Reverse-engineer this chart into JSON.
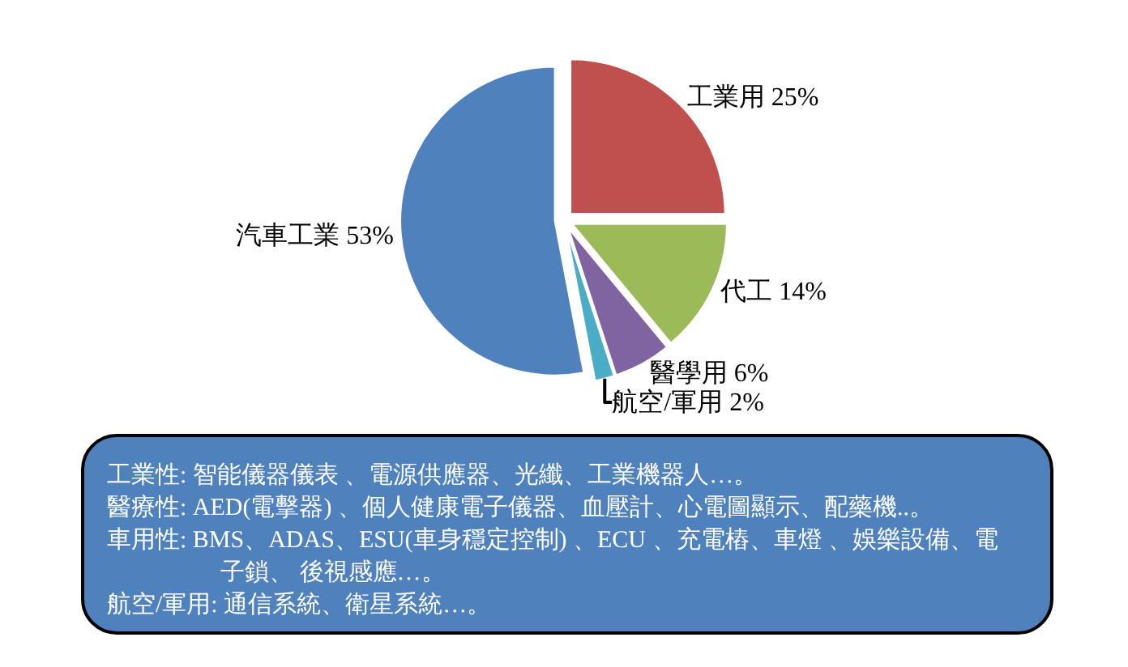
{
  "chart_data": {
    "type": "pie",
    "categories": [
      "工業用",
      "代工",
      "醫學用",
      "航空/軍用",
      "汽車工業"
    ],
    "values": [
      25,
      14,
      6,
      2,
      53
    ],
    "value_labels": [
      "25%",
      "14%",
      "6%",
      "2%",
      "53%"
    ],
    "colors": [
      "#c0504d",
      "#9bbb59",
      "#8064a2",
      "#4bacc6",
      "#4f81bd"
    ],
    "annotations": [
      "工業性: 智能儀器儀表 、電源供應器、光纖、工業機器人…。",
      "醫療性: AED(電擊器) 、個人健康電子儀器、血壓計、心電圖顯示、配藥機..。",
      "車用性: BMS、ADAS、ESU(車身穩定控制) 、ECU 、充電樁、車燈 、娛樂設備、電子鎖、 後視感應…。",
      "航空/軍用: 通信系統、衛星系統…。"
    ]
  }
}
